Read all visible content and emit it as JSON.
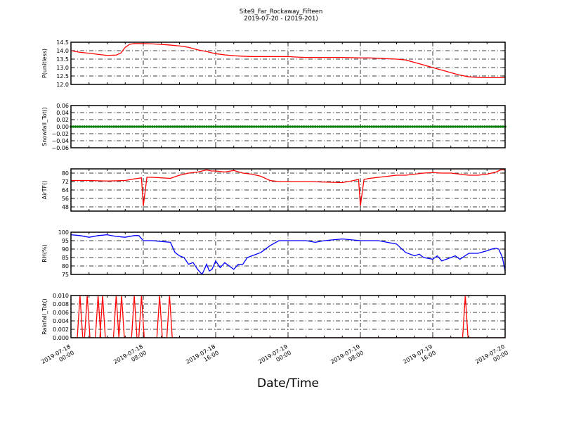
{
  "chart_data": {
    "type": "line",
    "title": "Site9_Far_Rockaway_Fifteen",
    "subtitle": "2019-07-20 - (2019-201)",
    "xlabel": "Date/Time",
    "x_unit": "hours since 2019-07-18 00:00",
    "xlim": [
      0,
      48
    ],
    "xticks": [
      0,
      8,
      16,
      24,
      32,
      40,
      48
    ],
    "xtick_labels": [
      [
        "2019-07-18",
        "00:00"
      ],
      [
        "2019-07-18",
        "08:00"
      ],
      [
        "2019-07-18",
        "16:00"
      ],
      [
        "2019-07-19",
        "00:00"
      ],
      [
        "2019-07-19",
        "08:00"
      ],
      [
        "2019-07-19",
        "16:00"
      ],
      [
        "2019-07-20",
        "00:00"
      ]
    ],
    "grid": true,
    "panels": [
      {
        "ylabel": "P(unitless)",
        "ylim": [
          12.0,
          14.5
        ],
        "yticks": [
          12.0,
          12.5,
          13.0,
          13.5,
          14.0,
          14.5
        ],
        "ytick_labels": [
          "12.0",
          "12.5",
          "13.0",
          "13.5",
          "14.0",
          "14.5"
        ],
        "color": "#ff0000",
        "x": [
          0,
          1,
          2,
          3,
          4,
          5,
          5.5,
          6,
          6.5,
          7,
          8,
          9,
          10,
          11,
          12,
          13,
          14,
          15,
          16,
          17,
          18,
          19,
          20,
          22,
          24,
          25,
          26,
          28,
          30,
          32,
          33,
          34,
          35,
          36,
          37,
          38,
          39,
          40,
          41,
          42,
          43,
          44,
          45,
          46,
          48
        ],
        "y": [
          14.0,
          13.9,
          13.85,
          13.78,
          13.72,
          13.74,
          13.85,
          14.2,
          14.38,
          14.42,
          14.42,
          14.4,
          14.37,
          14.33,
          14.28,
          14.2,
          14.05,
          13.95,
          13.82,
          13.75,
          13.7,
          13.67,
          13.65,
          13.65,
          13.65,
          13.62,
          13.6,
          13.6,
          13.6,
          13.57,
          13.57,
          13.55,
          13.52,
          13.5,
          13.45,
          13.3,
          13.15,
          13.0,
          12.85,
          12.7,
          12.55,
          12.45,
          12.42,
          12.4,
          12.4
        ]
      },
      {
        "ylabel": "Snowfall_Tot()",
        "ylim": [
          -0.06,
          0.06
        ],
        "yticks": [
          -0.06,
          -0.04,
          -0.02,
          0.0,
          0.02,
          0.04,
          0.06
        ],
        "ytick_labels": [
          "−0.06",
          "−0.04",
          "−0.02",
          "0.00",
          "0.02",
          "0.04",
          "0.06"
        ],
        "color": "#008000",
        "constant_value": 0.0,
        "interval_minutes": 15,
        "marker": "dot"
      },
      {
        "ylabel": "AirTF()",
        "ylim": [
          44,
          84
        ],
        "yticks": [
          48,
          56,
          64,
          72,
          80
        ],
        "ytick_labels": [
          "48",
          "56",
          "64",
          "72",
          "80"
        ],
        "color": "#ff0000",
        "x": [
          0,
          2,
          4,
          6,
          7,
          7.8,
          8,
          8.4,
          9,
          10,
          11,
          12,
          13,
          14,
          15,
          15.5,
          16,
          17,
          18,
          19,
          20,
          21,
          22,
          23,
          24,
          26,
          28,
          30,
          31,
          31.8,
          32,
          32.4,
          33,
          34,
          35,
          36,
          37,
          38,
          39,
          40,
          41,
          42,
          43,
          44,
          45,
          46,
          47,
          47.5,
          48
        ],
        "y": [
          73,
          73,
          72.5,
          73,
          74.5,
          75.5,
          49,
          76,
          76,
          75.5,
          75,
          78,
          80,
          81,
          83,
          82,
          82,
          81,
          82.5,
          80,
          79,
          77,
          73,
          72,
          72,
          72,
          71.5,
          71,
          72.5,
          74,
          49,
          74,
          75,
          76,
          77,
          78,
          78,
          79,
          80,
          80.5,
          80,
          80,
          79,
          78,
          78,
          79,
          81,
          83,
          83
        ]
      },
      {
        "ylabel": "RH(%)",
        "ylim": [
          75,
          100
        ],
        "yticks": [
          75,
          80,
          85,
          90,
          95,
          100
        ],
        "ytick_labels": [
          "75",
          "80",
          "85",
          "90",
          "95",
          "100"
        ],
        "color": "#0000ff",
        "x": [
          0,
          1,
          2,
          3,
          4,
          5,
          6,
          7,
          7.5,
          8,
          9,
          10,
          11,
          11.5,
          12,
          12.5,
          13,
          13.5,
          14,
          14.5,
          15,
          15.3,
          15.6,
          16,
          16.5,
          17,
          17.5,
          18,
          18.5,
          19,
          19.5,
          20,
          21,
          22,
          23,
          24,
          26,
          27,
          28,
          30,
          32,
          33,
          34,
          36,
          37,
          38,
          38.5,
          39,
          40,
          40.5,
          41,
          42,
          42.5,
          43,
          44,
          45,
          46,
          46.5,
          47,
          47.3,
          47.7,
          48
        ],
        "y": [
          98.5,
          98,
          97,
          98,
          98.5,
          97.5,
          97,
          98,
          98,
          95,
          95,
          94.5,
          94,
          88,
          86,
          85,
          81,
          82,
          78,
          75,
          81,
          77,
          78,
          83,
          79,
          82,
          80,
          78,
          81,
          81,
          85,
          86,
          88,
          92,
          95,
          95,
          95,
          94,
          95,
          96,
          95,
          95,
          95,
          93,
          88,
          86,
          87,
          85,
          84,
          86,
          83,
          85,
          86,
          84,
          87.5,
          87.5,
          89,
          90,
          90.5,
          90,
          85,
          77
        ]
      },
      {
        "ylabel": "Rainfall_Tot()",
        "ylim": [
          0.0,
          0.01
        ],
        "yticks": [
          0.0,
          0.002,
          0.004,
          0.006,
          0.008,
          0.01
        ],
        "ytick_labels": [
          "0.000",
          "0.002",
          "0.004",
          "0.006",
          "0.008",
          "0.010"
        ],
        "color": "#ff0000",
        "spike_hours": [
          1.0,
          1.8,
          3.0,
          3.5,
          5.0,
          5.6,
          7.0,
          7.8,
          9.8,
          10.9,
          43.6
        ],
        "spike_value": 0.01,
        "baseline": 0.0
      }
    ]
  }
}
